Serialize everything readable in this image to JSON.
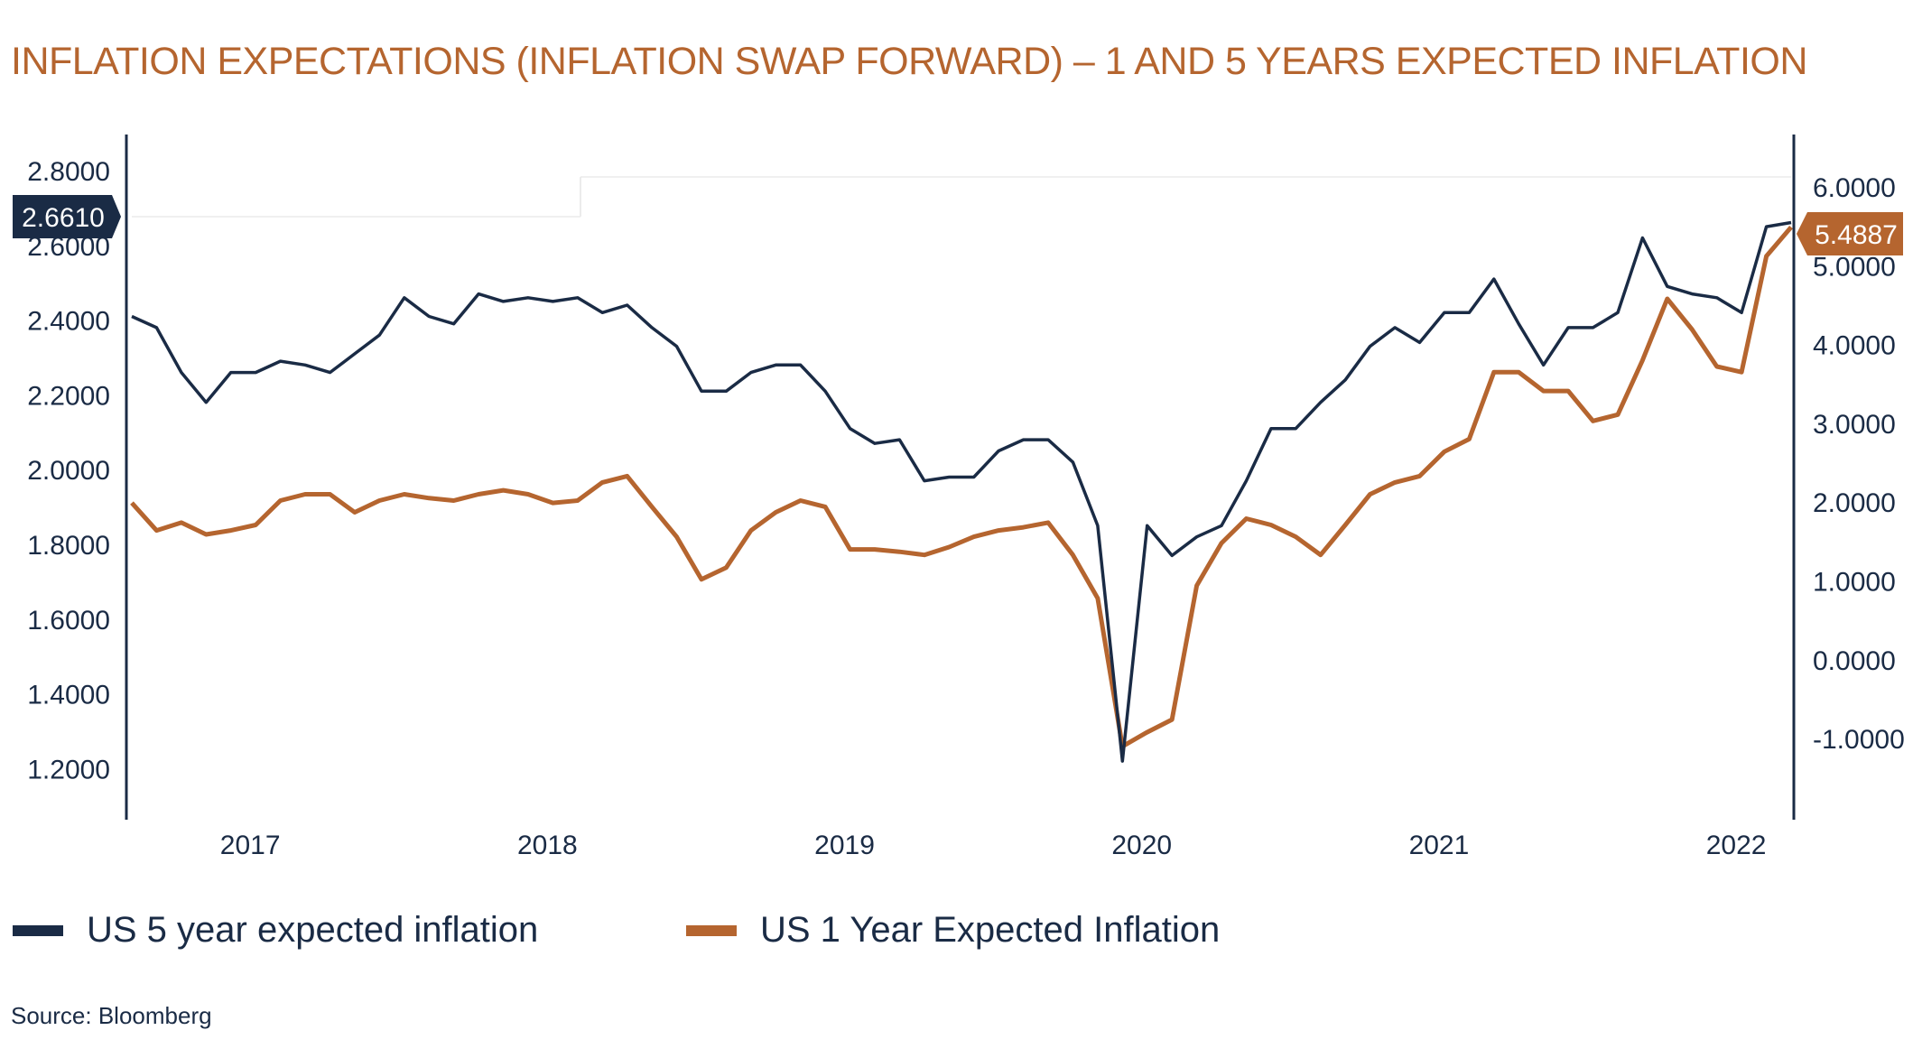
{
  "chart_data": {
    "type": "line",
    "title": "INFLATION EXPECTATIONS (INFLATION SWAP FORWARD) – 1 AND 5 YEARS EXPECTED INFLATION",
    "source": "Source: Bloomberg",
    "x": [
      "2016-08",
      "2016-09",
      "2016-10",
      "2016-11",
      "2016-12",
      "2017-01",
      "2017-02",
      "2017-03",
      "2017-04",
      "2017-05",
      "2017-06",
      "2017-07",
      "2017-08",
      "2017-09",
      "2017-10",
      "2017-11",
      "2017-12",
      "2018-01",
      "2018-02",
      "2018-03",
      "2018-04",
      "2018-05",
      "2018-06",
      "2018-07",
      "2018-08",
      "2018-09",
      "2018-10",
      "2018-11",
      "2018-12",
      "2019-01",
      "2019-02",
      "2019-03",
      "2019-04",
      "2019-05",
      "2019-06",
      "2019-07",
      "2019-08",
      "2019-09",
      "2019-10",
      "2019-11",
      "2019-12",
      "2020-01",
      "2020-02",
      "2020-03",
      "2020-04",
      "2020-05",
      "2020-06",
      "2020-07",
      "2020-08",
      "2020-09",
      "2020-10",
      "2020-11",
      "2020-12",
      "2021-01",
      "2021-02",
      "2021-03",
      "2021-04",
      "2021-05",
      "2021-06",
      "2021-07",
      "2021-08",
      "2021-09",
      "2021-10",
      "2021-11",
      "2021-12",
      "2022-01",
      "2022-02",
      "2022-03"
    ],
    "x_tick_labels": [
      "2017",
      "2018",
      "2019",
      "2020",
      "2021",
      "2022"
    ],
    "x_tick_dates": [
      "2017-01",
      "2018-01",
      "2019-01",
      "2020-01",
      "2021-01",
      "2022-01"
    ],
    "y_left": {
      "ticks": [
        "2.8000",
        "2.6000",
        "2.4000",
        "2.2000",
        "2.0000",
        "1.8000",
        "1.6000",
        "1.4000",
        "1.2000"
      ],
      "range": [
        1.2,
        2.8
      ]
    },
    "y_right": {
      "ticks": [
        "6.0000",
        "5.0000",
        "4.0000",
        "3.0000",
        "2.0000",
        "1.0000",
        "0.0000",
        "-1.0000"
      ],
      "range": [
        -1.0,
        6.0
      ]
    },
    "grid": false,
    "legend_position": "bottom-left",
    "series": [
      {
        "name": "US 5 year expected inflation",
        "axis": "left",
        "color": "#1a2b45",
        "last_value_label": "2.6610",
        "values": [
          2.41,
          2.38,
          2.26,
          2.18,
          2.26,
          2.26,
          2.29,
          2.28,
          2.26,
          2.31,
          2.36,
          2.46,
          2.41,
          2.39,
          2.47,
          2.45,
          2.46,
          2.45,
          2.46,
          2.42,
          2.44,
          2.38,
          2.33,
          2.21,
          2.21,
          2.26,
          2.28,
          2.28,
          2.21,
          2.11,
          2.07,
          2.08,
          1.97,
          1.98,
          1.98,
          2.05,
          2.08,
          2.08,
          2.02,
          1.85,
          1.22,
          1.85,
          1.77,
          1.82,
          1.85,
          1.97,
          2.11,
          2.11,
          2.18,
          2.24,
          2.33,
          2.38,
          2.34,
          2.42,
          2.42,
          2.51,
          2.39,
          2.28,
          2.38,
          2.38,
          2.42,
          2.62,
          2.49,
          2.47,
          2.46,
          2.42,
          2.65,
          2.661
        ]
      },
      {
        "name": "US 1 Year Expected Inflation",
        "axis": "right",
        "color": "#b5652f",
        "last_value_label": "5.4887",
        "values": [
          1.99,
          1.64,
          1.74,
          1.59,
          1.64,
          1.71,
          2.02,
          2.1,
          2.1,
          1.87,
          2.02,
          2.1,
          2.05,
          2.02,
          2.1,
          2.15,
          2.1,
          1.99,
          2.02,
          2.25,
          2.33,
          1.94,
          1.56,
          1.02,
          1.17,
          1.64,
          1.87,
          2.02,
          1.94,
          1.4,
          1.4,
          1.37,
          1.33,
          1.43,
          1.56,
          1.64,
          1.68,
          1.74,
          1.33,
          0.78,
          -1.1,
          -0.92,
          -0.76,
          0.94,
          1.48,
          1.79,
          1.71,
          1.56,
          1.33,
          1.71,
          2.1,
          2.25,
          2.33,
          2.64,
          2.8,
          3.65,
          3.65,
          3.41,
          3.41,
          3.03,
          3.11,
          3.8,
          4.58,
          4.19,
          3.72,
          3.65,
          5.12,
          5.4887
        ]
      }
    ]
  }
}
